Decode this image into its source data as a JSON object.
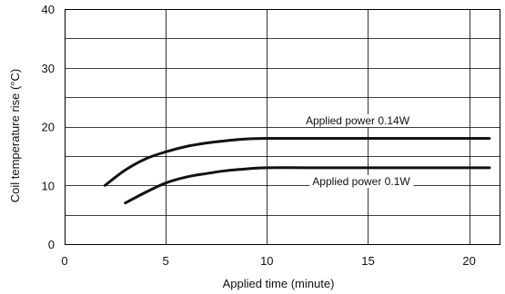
{
  "chart_data": {
    "type": "line",
    "title": "",
    "xlabel": "Applied time (minute)",
    "ylabel": "Coil temperature rise (°C)",
    "xlim": [
      0,
      21.5
    ],
    "ylim": [
      0,
      40
    ],
    "x_ticks": [
      0,
      5,
      10,
      15,
      20
    ],
    "x_tick_labels": [
      "0",
      "5",
      "10",
      "15",
      "20"
    ],
    "y_ticks": [
      0,
      10,
      20,
      30,
      40
    ],
    "y_tick_labels": [
      "0",
      "10",
      "20",
      "30",
      "40"
    ],
    "grid": true,
    "series": [
      {
        "name": "Applied power 0.14W",
        "x": [
          2,
          3,
          4,
          5,
          6,
          7,
          8,
          9,
          10,
          12,
          15,
          18,
          21
        ],
        "y": [
          10,
          12.6,
          14.5,
          15.7,
          16.6,
          17.2,
          17.6,
          17.9,
          18,
          18,
          18,
          18,
          18
        ]
      },
      {
        "name": "Applied power 0.1W",
        "x": [
          3,
          4,
          5,
          6,
          7,
          8,
          9,
          10,
          12,
          15,
          18,
          21
        ],
        "y": [
          7,
          8.8,
          10.4,
          11.4,
          12,
          12.5,
          12.8,
          13,
          13,
          13,
          13,
          13
        ]
      }
    ],
    "annotations": [
      {
        "text": "Applied power 0.14W",
        "series": 0
      },
      {
        "text": "Applied power 0.1W",
        "series": 1
      }
    ]
  },
  "colors": {
    "line": "#111111",
    "grid": "#000000",
    "axis": "#000000",
    "text": "#111111"
  }
}
